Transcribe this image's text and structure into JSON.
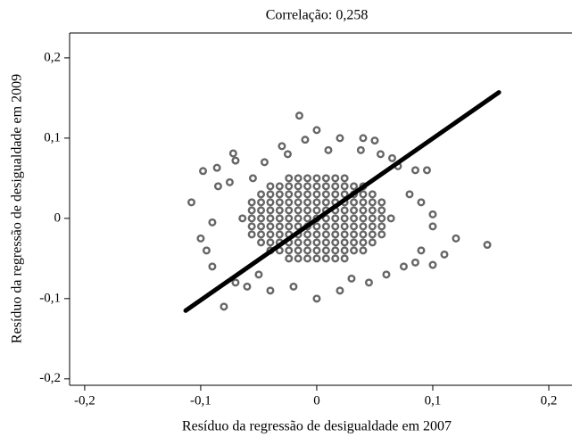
{
  "chart_data": {
    "type": "scatter",
    "title": "Correlação: 0,258",
    "x_label": "Resíduo da regressão de desigualdade em 2007",
    "y_label": "Resíduo da regressão de desigualdade em 2009",
    "xlim": [
      -0.213,
      0.22
    ],
    "ylim": [
      -0.208,
      0.231
    ],
    "xticks": [
      {
        "value": -0.2,
        "label": "-0,2"
      },
      {
        "value": -0.1,
        "label": "-0,1"
      },
      0,
      {
        "value": 0.1,
        "label": "0,1"
      },
      {
        "value": 0.2,
        "label": "0,2"
      }
    ],
    "yticks": [
      {
        "value": -0.2,
        "label": "-0,2"
      },
      {
        "value": -0.1,
        "label": "-0,1"
      },
      0,
      {
        "value": 0.1,
        "label": "0,1"
      },
      {
        "value": 0.2,
        "label": "0,2"
      }
    ],
    "points": {
      "color": "#666666",
      "x": [
        -0.098,
        -0.086,
        -0.108,
        -0.07,
        -0.072,
        -0.045,
        -0.03,
        -0.015,
        -0.01,
        0.0,
        0.02,
        0.04,
        0.05,
        0.038,
        0.065,
        0.07,
        0.085,
        0.095,
        0.147,
        0.12,
        0.11,
        0.1,
        0.09,
        0.075,
        0.06,
        0.045,
        0.02,
        0.0,
        -0.02,
        -0.04,
        -0.05,
        -0.08,
        -0.06,
        -0.09,
        -0.095,
        -0.1,
        -0.09,
        -0.085,
        -0.075,
        -0.055,
        0.03,
        0.055,
        -0.025,
        0.01,
        0.08,
        0.09,
        0.1,
        0.1,
        0.085,
        -0.07,
        -0.024,
        -0.016,
        -0.008,
        0,
        0.008,
        0.016,
        0.024,
        -0.04,
        -0.032,
        -0.024,
        -0.016,
        -0.008,
        0,
        0.008,
        0.016,
        0.024,
        0.032,
        0.04,
        -0.048,
        -0.04,
        -0.032,
        -0.024,
        -0.016,
        -0.008,
        0,
        0.008,
        0.016,
        0.024,
        0.032,
        0.04,
        0.048,
        -0.056,
        -0.048,
        -0.04,
        -0.032,
        -0.024,
        -0.016,
        -0.008,
        0,
        0.008,
        0.016,
        0.024,
        0.032,
        0.04,
        0.048,
        0.056,
        -0.056,
        -0.048,
        -0.04,
        -0.032,
        -0.024,
        -0.016,
        -0.008,
        0,
        0.008,
        0.016,
        0.024,
        0.032,
        0.04,
        0.048,
        0.056,
        -0.064,
        -0.056,
        -0.048,
        -0.04,
        -0.032,
        -0.024,
        -0.016,
        -0.008,
        0,
        0.008,
        0.016,
        0.024,
        0.032,
        0.04,
        0.048,
        0.056,
        0.064,
        -0.056,
        -0.048,
        -0.04,
        -0.032,
        -0.024,
        -0.016,
        -0.008,
        0,
        0.008,
        0.016,
        0.024,
        0.032,
        0.04,
        0.048,
        0.056,
        -0.056,
        -0.048,
        -0.04,
        -0.032,
        -0.024,
        -0.016,
        -0.008,
        0,
        0.008,
        0.016,
        0.024,
        0.032,
        0.04,
        0.048,
        0.056,
        -0.048,
        -0.04,
        -0.032,
        -0.024,
        -0.016,
        -0.008,
        0,
        0.008,
        0.016,
        0.024,
        0.032,
        0.04,
        0.048,
        -0.04,
        -0.032,
        -0.024,
        -0.016,
        -0.008,
        0,
        0.008,
        0.016,
        0.024,
        0.032,
        0.04,
        -0.024,
        -0.016,
        -0.008,
        0,
        0.008,
        0.016,
        0.024
      ],
      "y": [
        0.059,
        0.063,
        0.02,
        0.072,
        0.081,
        0.07,
        0.09,
        0.128,
        0.098,
        0.11,
        0.1,
        0.1,
        0.097,
        0.085,
        0.075,
        0.065,
        0.06,
        0.06,
        -0.033,
        -0.025,
        -0.045,
        -0.058,
        -0.04,
        -0.06,
        -0.07,
        -0.08,
        -0.09,
        -0.1,
        -0.085,
        -0.09,
        -0.07,
        -0.11,
        -0.085,
        -0.06,
        -0.04,
        -0.025,
        -0.005,
        0.04,
        0.045,
        0.05,
        -0.075,
        0.08,
        0.08,
        0.085,
        0.03,
        0.02,
        0.005,
        -0.01,
        -0.055,
        -0.08,
        0.05,
        0.05,
        0.05,
        0.05,
        0.05,
        0.05,
        0.05,
        0.04,
        0.04,
        0.04,
        0.04,
        0.04,
        0.04,
        0.04,
        0.04,
        0.04,
        0.04,
        0.04,
        0.03,
        0.03,
        0.03,
        0.03,
        0.03,
        0.03,
        0.03,
        0.03,
        0.03,
        0.03,
        0.03,
        0.03,
        0.03,
        0.02,
        0.02,
        0.02,
        0.02,
        0.02,
        0.02,
        0.02,
        0.02,
        0.02,
        0.02,
        0.02,
        0.02,
        0.02,
        0.02,
        0.02,
        0.01,
        0.01,
        0.01,
        0.01,
        0.01,
        0.01,
        0.01,
        0.01,
        0.01,
        0.01,
        0.01,
        0.01,
        0.01,
        0.01,
        0.01,
        0,
        0,
        0,
        0,
        0,
        0,
        0,
        0,
        0,
        0,
        0,
        0,
        0,
        0,
        0,
        0,
        0,
        -0.01,
        -0.01,
        -0.01,
        -0.01,
        -0.01,
        -0.01,
        -0.01,
        -0.01,
        -0.01,
        -0.01,
        -0.01,
        -0.01,
        -0.01,
        -0.01,
        -0.01,
        -0.02,
        -0.02,
        -0.02,
        -0.02,
        -0.02,
        -0.02,
        -0.02,
        -0.02,
        -0.02,
        -0.02,
        -0.02,
        -0.02,
        -0.02,
        -0.02,
        -0.02,
        -0.03,
        -0.03,
        -0.03,
        -0.03,
        -0.03,
        -0.03,
        -0.03,
        -0.03,
        -0.03,
        -0.03,
        -0.03,
        -0.03,
        -0.03,
        -0.04,
        -0.04,
        -0.04,
        -0.04,
        -0.04,
        -0.04,
        -0.04,
        -0.04,
        -0.04,
        -0.04,
        -0.04,
        -0.05,
        -0.05,
        -0.05,
        -0.05,
        -0.05,
        -0.05,
        -0.05
      ]
    },
    "fit_line": {
      "color": "#000000",
      "x": [
        -0.113,
        0.157
      ],
      "y": [
        -0.115,
        0.157
      ]
    }
  }
}
